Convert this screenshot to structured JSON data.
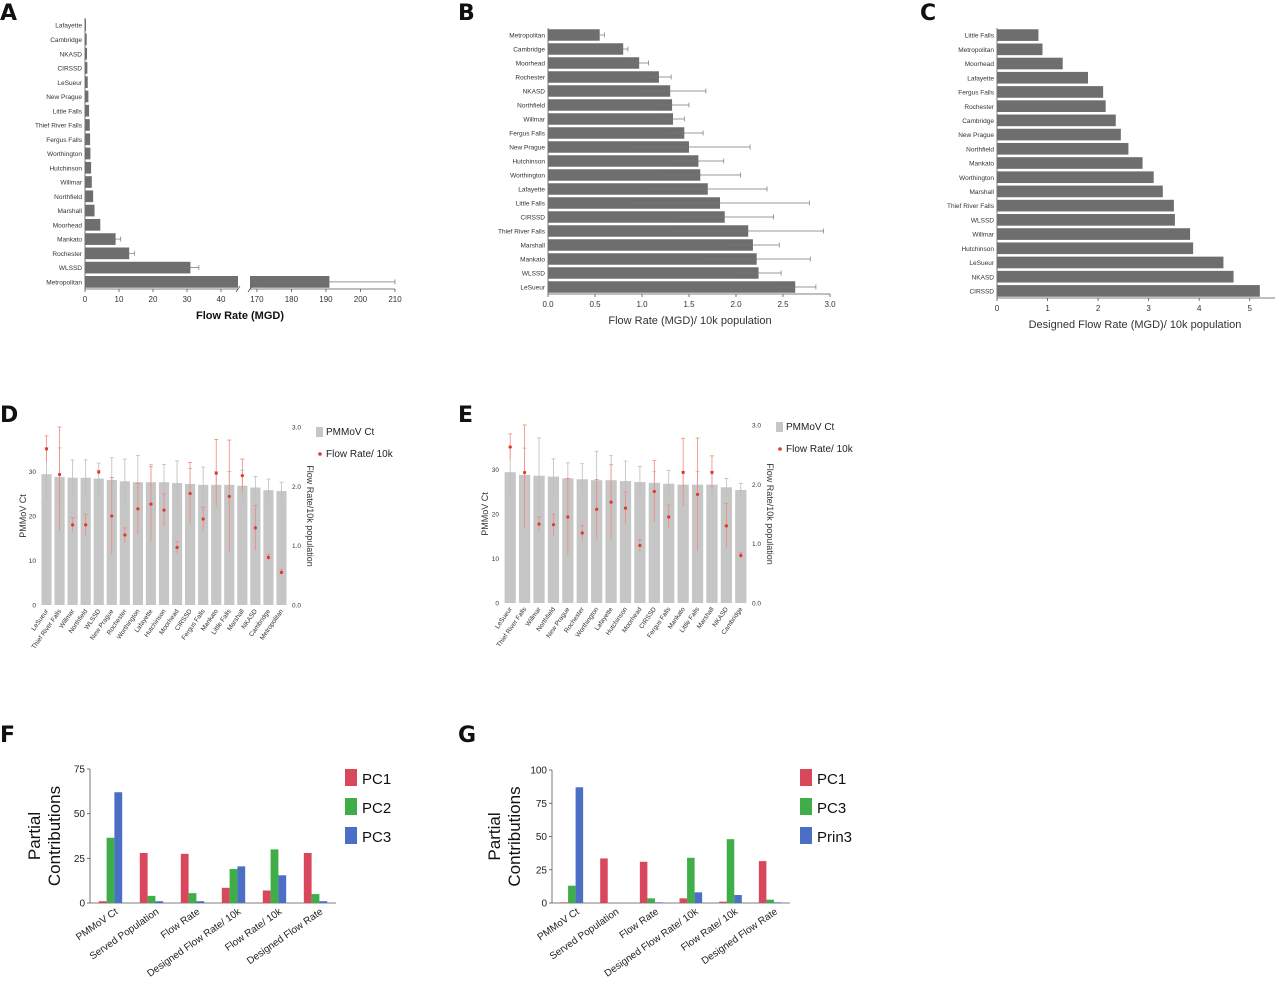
{
  "chart_data": [
    {
      "panel": "A",
      "type": "bar",
      "orientation": "horizontal",
      "categories": [
        "Lafayette",
        "Cambridge",
        "NKASD",
        "CIRSSD",
        "LeSueur",
        "New Prague",
        "Little Falls",
        "Thief River Falls",
        "Fergus Falls",
        "Worthington",
        "Hutchinson",
        "Willmar",
        "Northfield",
        "Marshall",
        "Moorhead",
        "Mankato",
        "Rochester",
        "WLSSD",
        "Metropolitan"
      ],
      "values": [
        0.3,
        0.5,
        0.6,
        0.7,
        0.8,
        1.0,
        1.2,
        1.4,
        1.5,
        1.6,
        1.8,
        2.0,
        2.4,
        2.8,
        4.5,
        9,
        13,
        31,
        191
      ],
      "errors": [
        0,
        0,
        0,
        0,
        0,
        0,
        0,
        0,
        0,
        0,
        0,
        0,
        0,
        0,
        0,
        1.5,
        1.5,
        2.5,
        19
      ],
      "xlabel": "Flow Rate (MGD)",
      "xticks": [
        "0",
        "10",
        "20",
        "30",
        "40",
        "170",
        "180",
        "190",
        "200",
        "210"
      ],
      "axis_break": [
        45,
        168
      ],
      "xlim": [
        0,
        210
      ]
    },
    {
      "panel": "B",
      "type": "bar",
      "orientation": "horizontal",
      "categories": [
        "Metropolitan",
        "Cambridge",
        "Moorhead",
        "Rochester",
        "NKASD",
        "Northfield",
        "Willmar",
        "Fergus Falls",
        "New Prague",
        "Hutchinson",
        "Worthington",
        "Lafayette",
        "Little Falls",
        "CIRSSD",
        "Thief River Falls",
        "Marshall",
        "Mankato",
        "WLSSD",
        "LeSueur"
      ],
      "values": [
        0.55,
        0.8,
        0.97,
        1.18,
        1.3,
        1.32,
        1.33,
        1.45,
        1.5,
        1.6,
        1.62,
        1.7,
        1.83,
        1.88,
        2.13,
        2.18,
        2.22,
        2.24,
        2.63
      ],
      "errors": [
        0.05,
        0.05,
        0.1,
        0.13,
        0.38,
        0.18,
        0.12,
        0.2,
        0.65,
        0.27,
        0.43,
        0.63,
        0.95,
        0.52,
        0.8,
        0.28,
        0.57,
        0.24,
        0.22
      ],
      "xlabel": "Flow Rate (MGD)/ 10k population",
      "xticks": [
        "0.0",
        "0.5",
        "1.0",
        "1.5",
        "2.0",
        "2.5",
        "3.0"
      ],
      "xlim": [
        0,
        3
      ]
    },
    {
      "panel": "C",
      "type": "bar",
      "orientation": "horizontal",
      "categories": [
        "Little Falls",
        "Metropolitan",
        "Moorhead",
        "Lafayette",
        "Fergus Falls",
        "Rochester",
        "Cambridge",
        "New Prague",
        "Northfield",
        "Mankato",
        "Worthington",
        "Marshall",
        "Thief River Falls",
        "WLSSD",
        "Willmar",
        "Hutchinson",
        "LeSueur",
        "NKASD",
        "CIRSSD"
      ],
      "values": [
        0.82,
        0.9,
        1.3,
        1.8,
        2.1,
        2.15,
        2.35,
        2.45,
        2.6,
        2.88,
        3.1,
        3.28,
        3.5,
        3.52,
        3.82,
        3.88,
        4.48,
        4.68,
        5.2
      ],
      "xlabel": "Designed Flow Rate (MGD)/ 10k population",
      "xticks": [
        "0",
        "1",
        "2",
        "3",
        "4",
        "5"
      ],
      "xlim": [
        0,
        5.5
      ]
    },
    {
      "panel": "D",
      "type": "bar",
      "categories": [
        "LeSueur",
        "Thief River Falls",
        "Willmar",
        "Northfield",
        "WLSSD",
        "New Prague",
        "Rochester",
        "Worthington",
        "Lafayette",
        "Hutchinson",
        "Moorhead",
        "CIRSSD",
        "Fergus Falls",
        "Mankato",
        "Little Falls",
        "Marshall",
        "NKASD",
        "Cambridge",
        "Metropolitan"
      ],
      "series": [
        {
          "name": "PMMoV Ct",
          "values": [
            29.4,
            28.8,
            28.6,
            28.6,
            28.4,
            28.1,
            27.8,
            27.6,
            27.6,
            27.6,
            27.4,
            27.2,
            27.0,
            27.0,
            27.0,
            26.8,
            26.4,
            25.8,
            25.6
          ],
          "errors": [
            6,
            6.5,
            4,
            4,
            3.5,
            5,
            5,
            6,
            4,
            4,
            5,
            3.5,
            4,
            3,
            3,
            3.5,
            2.5,
            2.5,
            2
          ]
        },
        {
          "name": "Flow Rate/ 10k",
          "values": [
            2.63,
            2.2,
            1.35,
            1.35,
            2.24,
            1.5,
            1.18,
            1.62,
            1.7,
            1.6,
            0.97,
            1.88,
            1.45,
            2.22,
            1.83,
            2.18,
            1.3,
            0.8,
            0.55
          ],
          "errors": [
            0.22,
            0.95,
            0.12,
            0.18,
            0.03,
            0.65,
            0.12,
            0.43,
            0.63,
            0.27,
            0.1,
            0.52,
            0.2,
            0.57,
            0.95,
            0.28,
            0.38,
            0.05,
            0.05
          ]
        }
      ],
      "ylabel": "PMMoV Ct",
      "y2label": "Flow Rate/10k population",
      "ylim": [
        0,
        40
      ],
      "y2lim": [
        0,
        3
      ],
      "yticks": [
        "0",
        "10",
        "20",
        "30"
      ],
      "y2ticks": [
        "0.0",
        "1.0",
        "2.0",
        "3.0"
      ]
    },
    {
      "panel": "E",
      "type": "bar",
      "categories": [
        "LeSueur",
        "Thief River Falls",
        "Willmar",
        "Northfield",
        "New Prague",
        "Rochester",
        "Worthington",
        "Lafayette",
        "Hutchinson",
        "Moorhead",
        "CIRSSD",
        "Fergus Falls",
        "Mankato",
        "Little Falls",
        "Marshall",
        "NKASD",
        "Cambridge"
      ],
      "series": [
        {
          "name": "PMMoV Ct",
          "values": [
            29.4,
            28.8,
            28.6,
            28.4,
            28.0,
            27.8,
            27.6,
            27.6,
            27.4,
            27.2,
            27.0,
            26.8,
            26.6,
            26.6,
            26.6,
            26.0,
            25.4
          ],
          "errors": [
            5.5,
            6,
            8.5,
            4,
            3.5,
            3.5,
            6.5,
            5.5,
            4.5,
            3.5,
            2.5,
            3,
            3,
            3,
            3,
            2,
            1.5
          ]
        },
        {
          "name": "Flow Rate/ 10k",
          "values": [
            2.63,
            2.2,
            1.33,
            1.32,
            1.45,
            1.18,
            1.58,
            1.7,
            1.6,
            0.97,
            1.88,
            1.45,
            2.2,
            1.83,
            2.2,
            1.3,
            0.8
          ],
          "errors": [
            0.22,
            0.95,
            0.12,
            0.18,
            0.65,
            0.13,
            0.5,
            0.63,
            0.27,
            0.1,
            0.52,
            0.2,
            0.57,
            0.95,
            0.28,
            0.38,
            0.05
          ]
        }
      ],
      "ylabel": "PMMoV Ct",
      "y2label": "Flow Rate/10k population",
      "ylim": [
        0,
        40
      ],
      "y2lim": [
        0,
        3
      ],
      "yticks": [
        "0",
        "10",
        "20",
        "30"
      ],
      "y2ticks": [
        "0.0",
        "1.0",
        "2.0",
        "3.0"
      ]
    },
    {
      "panel": "F",
      "type": "bar",
      "categories": [
        "PMMoV Ct",
        "Served Population",
        "Flow Rate",
        "Designed Flow Rate/ 10k",
        "Flow Rate/ 10k",
        "Designed Flow Rate"
      ],
      "series": [
        {
          "name": "PC1",
          "values": [
            1,
            28,
            27.5,
            8.5,
            7,
            28
          ]
        },
        {
          "name": "PC2",
          "values": [
            36.5,
            4,
            5.5,
            19,
            30,
            5
          ]
        },
        {
          "name": "PC3",
          "values": [
            62,
            1,
            1,
            20.5,
            15.5,
            1
          ]
        }
      ],
      "ylabel": "Partial Contributions",
      "ylim": [
        0,
        75
      ],
      "yticks": [
        "0",
        "25",
        "50",
        "75"
      ]
    },
    {
      "panel": "G",
      "type": "bar",
      "categories": [
        "PMMoV Ct",
        "Served Population",
        "Flow Rate",
        "Designed Flow Rate/ 10k",
        "Flow Rate/ 10k",
        "Designed Flow Rate"
      ],
      "series": [
        {
          "name": "PC1",
          "values": [
            0.5,
            33.5,
            31,
            3.5,
            1,
            31.5
          ]
        },
        {
          "name": "PC3",
          "values": [
            13,
            0,
            3.5,
            34,
            48,
            2.5
          ]
        },
        {
          "name": "Prin3",
          "values": [
            87,
            0,
            0.5,
            8,
            6,
            0.5
          ]
        }
      ],
      "ylabel": "Partial Contributions",
      "ylim": [
        0,
        100
      ],
      "yticks": [
        "0",
        "25",
        "50",
        "75",
        "100"
      ]
    }
  ],
  "colors": {
    "bar_gray": "#6e6e6e",
    "bar_light": "#c6c6c6",
    "marker_red": "#e0392b",
    "err_red": "#f08a7a",
    "pc1": "#d9475d",
    "pc2": "#3fae49",
    "pc3": "#4a6fc4"
  }
}
